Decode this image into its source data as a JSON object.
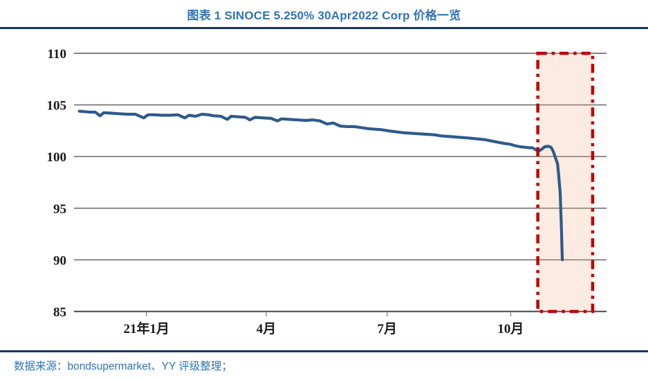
{
  "header": {
    "title": "图表 1 SINOCE 5.250% 30Apr2022 Corp 价格一览"
  },
  "footer": {
    "source": "数据来源：bondsupermarket、YY 评级整理；"
  },
  "colors": {
    "title_blue": "#2e74b5",
    "divider_navy": "#17375e",
    "source_blue": "#2e75b6",
    "line_blue": "#2d5a8c",
    "gridline_gray": "#595959",
    "highlight_red": "#c00000",
    "highlight_fill": "#f4b183"
  },
  "chart_data": {
    "type": "line",
    "title": "图表 1 SINOCE 5.250% 30Apr2022 Corp 价格一览",
    "xlabel": "",
    "ylabel": "",
    "ylim": [
      85,
      110
    ],
    "yticks": [
      85,
      90,
      95,
      100,
      105,
      110
    ],
    "xticks": [
      {
        "label": "21年1月",
        "pos": 0.136
      },
      {
        "label": "4月",
        "pos": 0.361
      },
      {
        "label": "7月",
        "pos": 0.588
      },
      {
        "label": "10月",
        "pos": 0.82
      }
    ],
    "grid": true,
    "legend_position": "none",
    "series": [
      {
        "name": "SINOCE 5.250% 30Apr2022 Corp price",
        "color": "#2d5a8c",
        "points": [
          [
            0.01,
            104.4
          ],
          [
            0.02,
            104.35
          ],
          [
            0.03,
            104.3
          ],
          [
            0.04,
            104.3
          ],
          [
            0.049,
            103.95
          ],
          [
            0.056,
            104.25
          ],
          [
            0.07,
            104.2
          ],
          [
            0.085,
            104.15
          ],
          [
            0.1,
            104.1
          ],
          [
            0.115,
            104.1
          ],
          [
            0.131,
            103.75
          ],
          [
            0.139,
            104.05
          ],
          [
            0.15,
            104.05
          ],
          [
            0.165,
            104.0
          ],
          [
            0.18,
            104.0
          ],
          [
            0.195,
            104.05
          ],
          [
            0.208,
            103.75
          ],
          [
            0.216,
            104.0
          ],
          [
            0.228,
            103.9
          ],
          [
            0.24,
            104.1
          ],
          [
            0.252,
            104.05
          ],
          [
            0.263,
            103.95
          ],
          [
            0.276,
            103.9
          ],
          [
            0.288,
            103.6
          ],
          [
            0.295,
            103.9
          ],
          [
            0.31,
            103.85
          ],
          [
            0.322,
            103.8
          ],
          [
            0.33,
            103.55
          ],
          [
            0.34,
            103.8
          ],
          [
            0.355,
            103.75
          ],
          [
            0.37,
            103.7
          ],
          [
            0.382,
            103.45
          ],
          [
            0.39,
            103.65
          ],
          [
            0.405,
            103.6
          ],
          [
            0.42,
            103.55
          ],
          [
            0.435,
            103.5
          ],
          [
            0.448,
            103.55
          ],
          [
            0.462,
            103.45
          ],
          [
            0.475,
            103.15
          ],
          [
            0.487,
            103.25
          ],
          [
            0.5,
            102.95
          ],
          [
            0.513,
            102.9
          ],
          [
            0.527,
            102.9
          ],
          [
            0.54,
            102.8
          ],
          [
            0.553,
            102.7
          ],
          [
            0.565,
            102.65
          ],
          [
            0.578,
            102.6
          ],
          [
            0.59,
            102.5
          ],
          [
            0.605,
            102.4
          ],
          [
            0.62,
            102.3
          ],
          [
            0.635,
            102.25
          ],
          [
            0.65,
            102.2
          ],
          [
            0.665,
            102.15
          ],
          [
            0.678,
            102.1
          ],
          [
            0.69,
            102.0
          ],
          [
            0.703,
            101.95
          ],
          [
            0.716,
            101.9
          ],
          [
            0.728,
            101.85
          ],
          [
            0.74,
            101.8
          ],
          [
            0.75,
            101.75
          ],
          [
            0.76,
            101.7
          ],
          [
            0.77,
            101.65
          ],
          [
            0.78,
            101.55
          ],
          [
            0.79,
            101.45
          ],
          [
            0.8,
            101.35
          ],
          [
            0.81,
            101.25
          ],
          [
            0.819,
            101.2
          ],
          [
            0.828,
            101.05
          ],
          [
            0.838,
            100.95
          ],
          [
            0.848,
            100.9
          ],
          [
            0.855,
            100.85
          ],
          [
            0.861,
            100.85
          ],
          [
            0.869,
            100.6
          ],
          [
            0.873,
            100.55
          ],
          [
            0.878,
            100.7
          ],
          [
            0.884,
            100.95
          ],
          [
            0.891,
            101.0
          ],
          [
            0.896,
            100.9
          ],
          [
            0.9,
            100.5
          ],
          [
            0.904,
            99.9
          ],
          [
            0.908,
            99.3
          ],
          [
            0.91,
            98.3
          ],
          [
            0.913,
            96.5
          ],
          [
            0.915,
            93.5
          ],
          [
            0.917,
            90.0
          ]
        ]
      }
    ],
    "highlight_box": {
      "x0": 0.871,
      "x1": 0.974,
      "y0": 85,
      "y1": 110,
      "stroke": "#c00000",
      "fill": "#f4b183",
      "fill_opacity": 0.25,
      "style": "dash-dot"
    }
  }
}
